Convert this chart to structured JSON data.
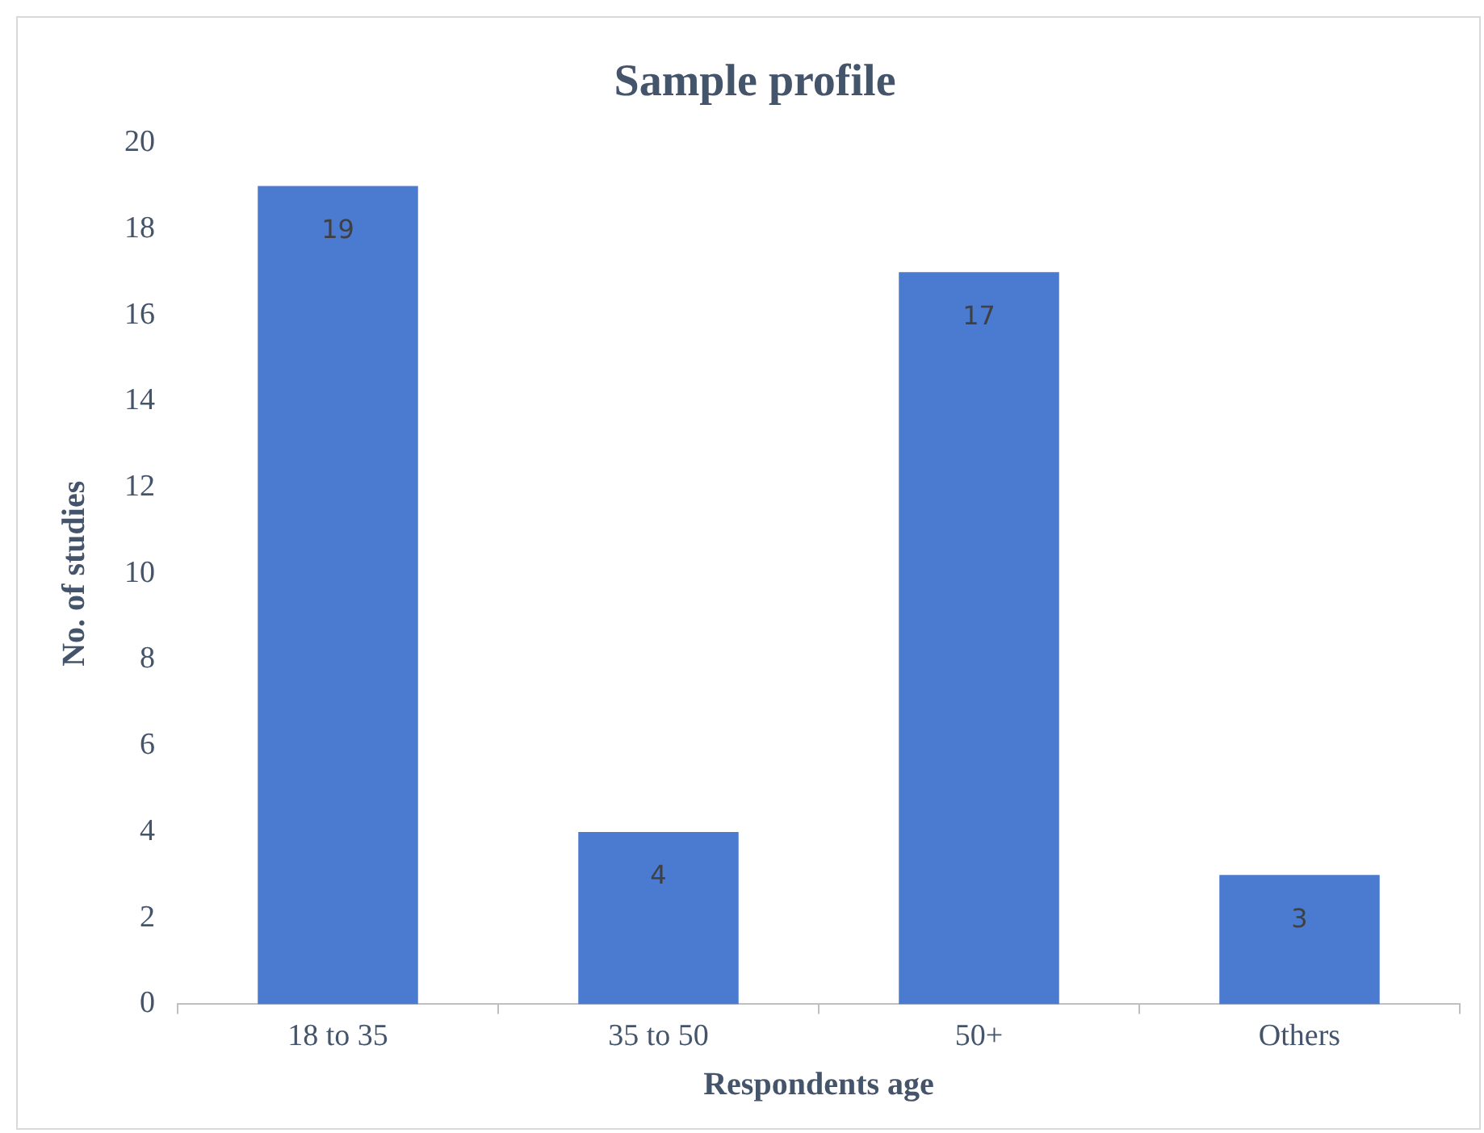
{
  "chart_data": {
    "type": "bar",
    "title": "Sample profile",
    "xlabel": "Respondents age",
    "ylabel": "No. of studies",
    "categories": [
      "18 to 35",
      "35 to 50",
      "50+",
      "Others"
    ],
    "values": [
      19,
      4,
      17,
      3
    ],
    "color": "#4a7bd0",
    "ylim": [
      0,
      20
    ],
    "yticks": [
      0,
      2,
      4,
      6,
      8,
      10,
      12,
      14,
      16,
      18,
      20
    ],
    "grid": false,
    "data_labels": true,
    "legend": false
  }
}
